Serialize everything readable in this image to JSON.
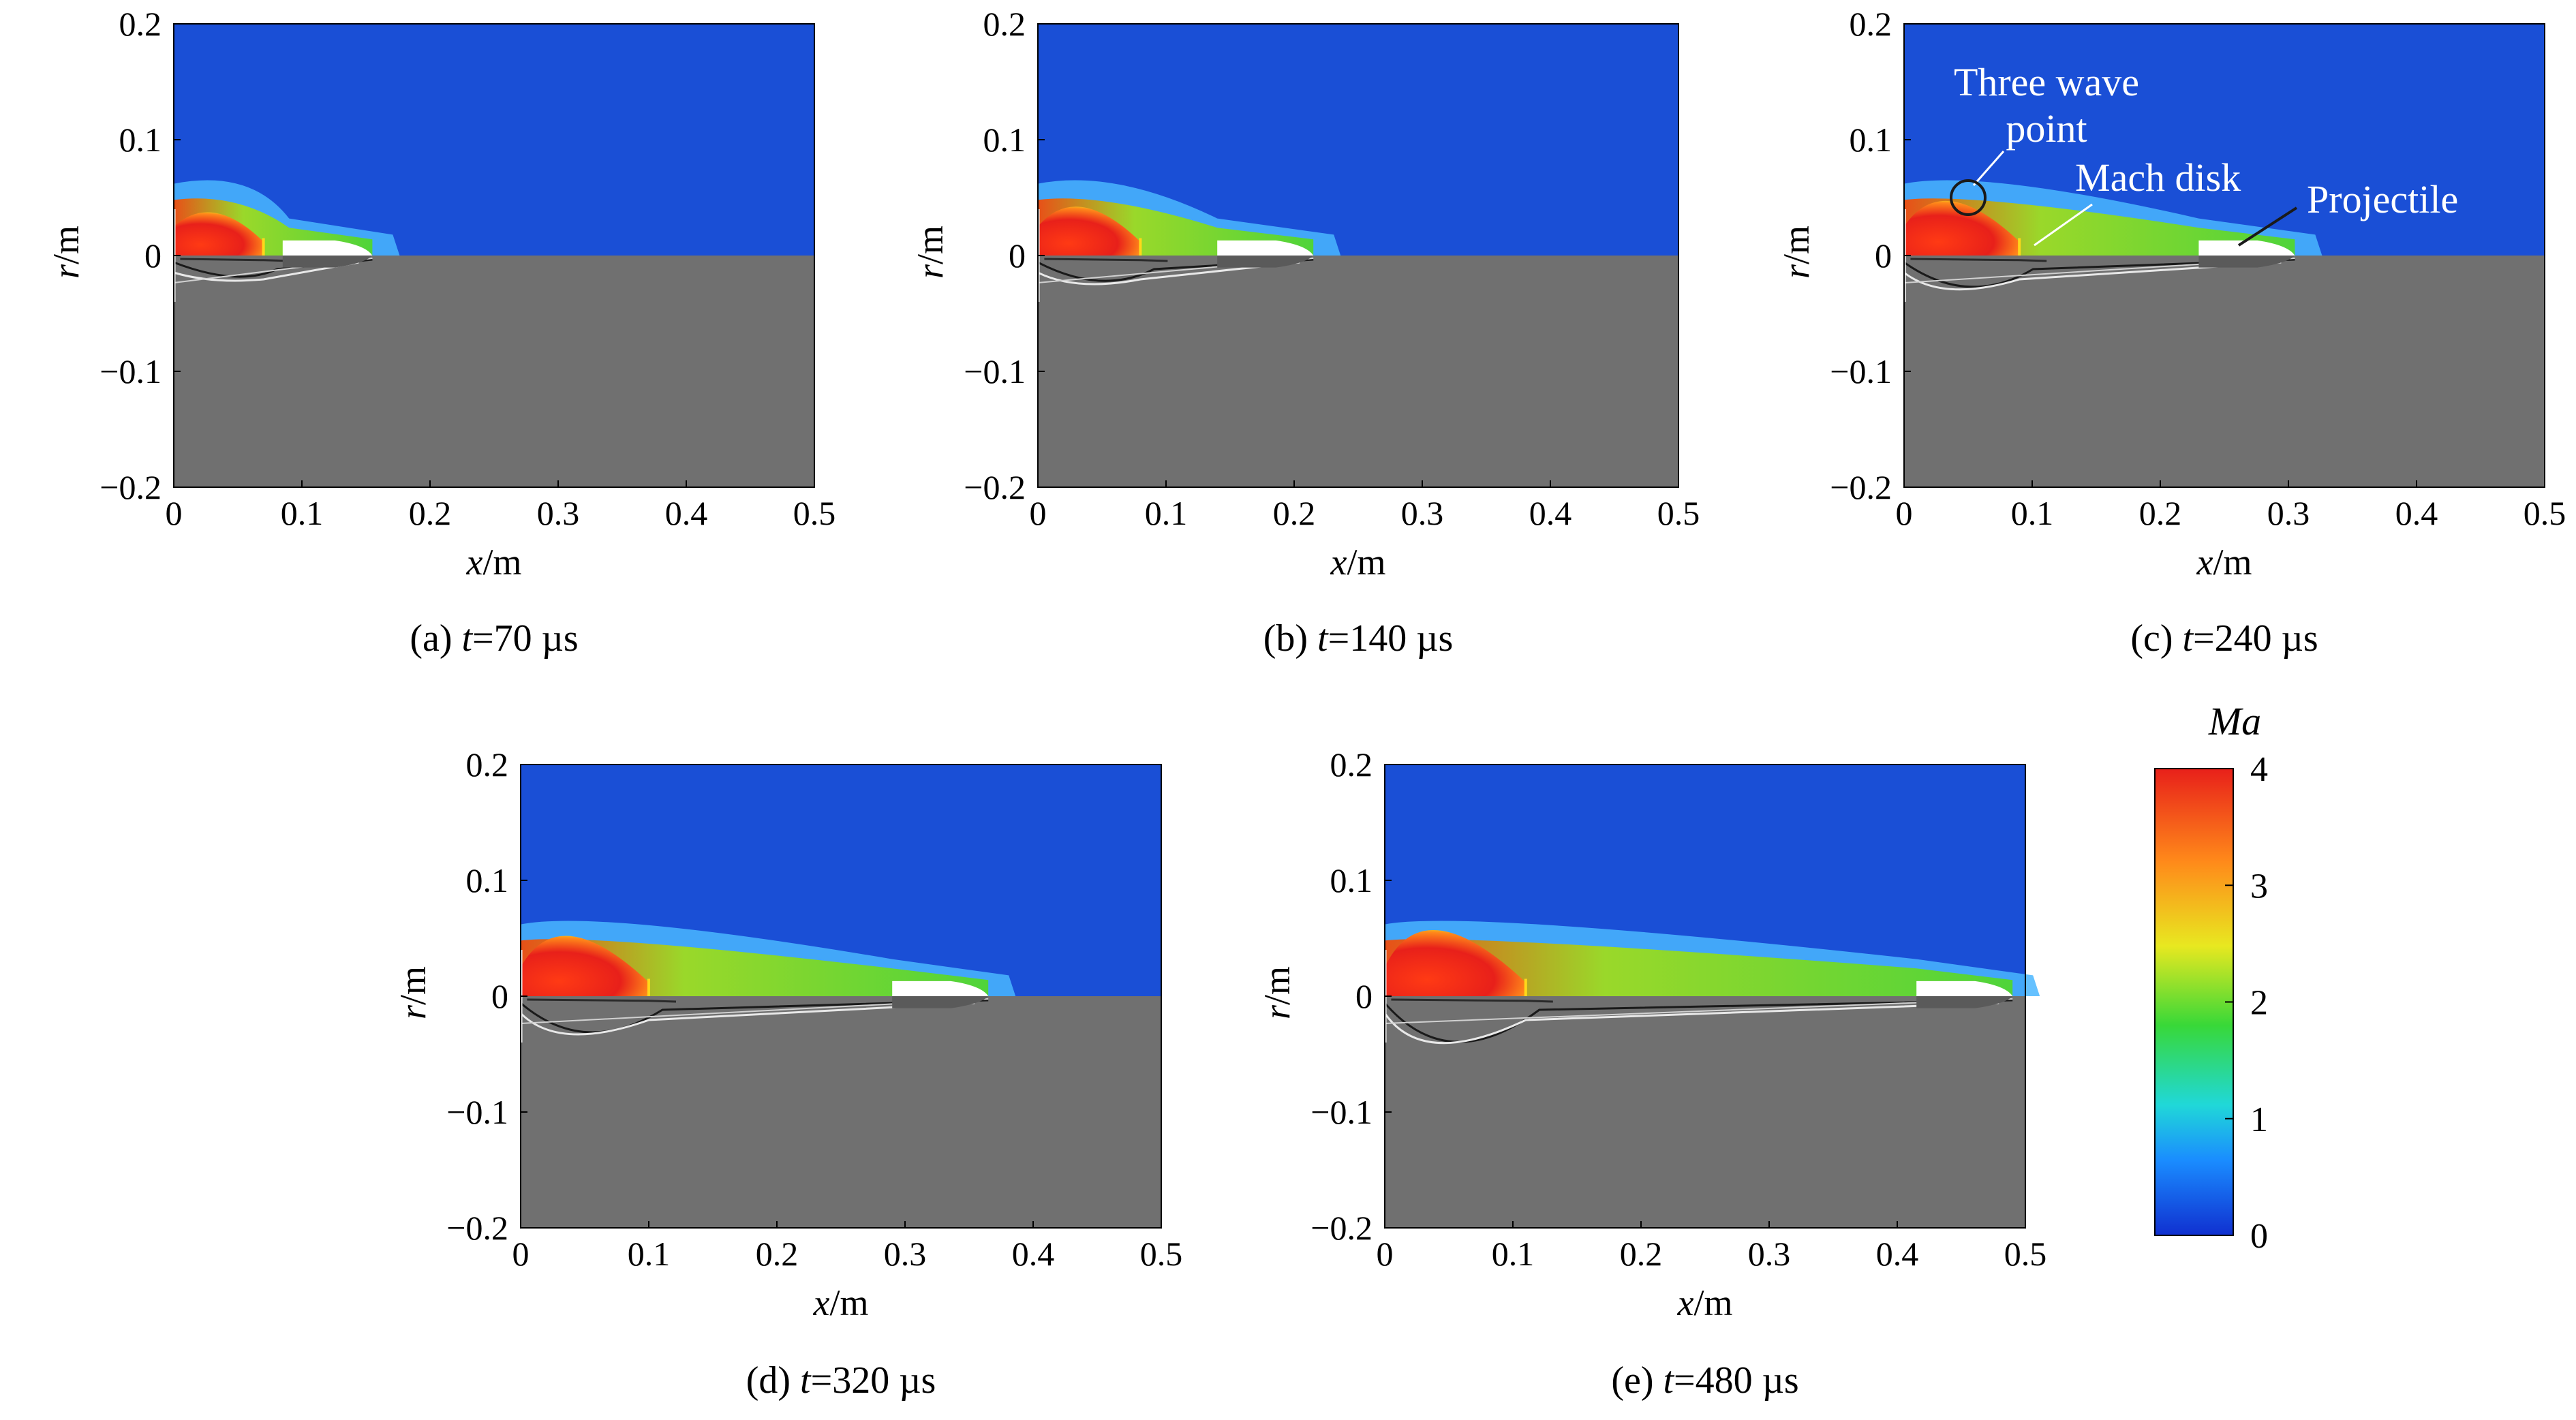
{
  "axes": {
    "x_label": "x",
    "x_unit": "/m",
    "r_label": "r",
    "r_unit": "/m",
    "x_ticks": [
      "0",
      "0.1",
      "0.2",
      "0.3",
      "0.4",
      "0.5"
    ],
    "r_ticks": [
      "0.2",
      "0.1",
      "0",
      "−0.1",
      "−0.2"
    ],
    "x_range": [
      0,
      0.5
    ],
    "r_range": [
      -0.2,
      0.2
    ]
  },
  "panels": [
    {
      "id": "a",
      "caption_prefix": "(a) ",
      "caption_t": "t",
      "caption_value": "=70 µs",
      "time_us": 70,
      "projectile_x": [
        0.085,
        0.155
      ],
      "plume_x": 0.09,
      "mach_disk_x": 0.07
    },
    {
      "id": "b",
      "caption_prefix": "(b) ",
      "caption_t": "t",
      "caption_value": "=140 µs",
      "time_us": 140,
      "projectile_x": [
        0.14,
        0.215
      ],
      "plume_x": 0.14,
      "mach_disk_x": 0.08
    },
    {
      "id": "c",
      "caption_prefix": "(c) ",
      "caption_t": "t",
      "caption_value": "=240 µs",
      "time_us": 240,
      "projectile_x": [
        0.23,
        0.305
      ],
      "plume_x": 0.23,
      "mach_disk_x": 0.09
    },
    {
      "id": "d",
      "caption_prefix": "(d) ",
      "caption_t": "t",
      "caption_value": "=320 µs",
      "time_us": 320,
      "projectile_x": [
        0.29,
        0.365
      ],
      "plume_x": 0.29,
      "mach_disk_x": 0.1
    },
    {
      "id": "e",
      "caption_prefix": "(e) ",
      "caption_t": "t",
      "caption_value": "=480 µs",
      "time_us": 480,
      "projectile_x": [
        0.415,
        0.49
      ],
      "plume_x": 0.415,
      "mach_disk_x": 0.11
    }
  ],
  "annotations": {
    "three_wave_point": [
      "Three wave",
      "point"
    ],
    "mach_disk": "Mach disk",
    "projectile": "Projectile"
  },
  "colorbar": {
    "title": "Ma",
    "ticks": [
      "0",
      "1",
      "2",
      "3",
      "4"
    ],
    "range": [
      0,
      4
    ],
    "colors": [
      "#1030d0",
      "#1a8cff",
      "#20d8d8",
      "#38d838",
      "#e8e820",
      "#ff8a1a",
      "#e8201a"
    ]
  },
  "colors": {
    "background_flow": "#1a4fd6",
    "schlieren_gray": "#707070",
    "projectile": "#ffffff"
  }
}
